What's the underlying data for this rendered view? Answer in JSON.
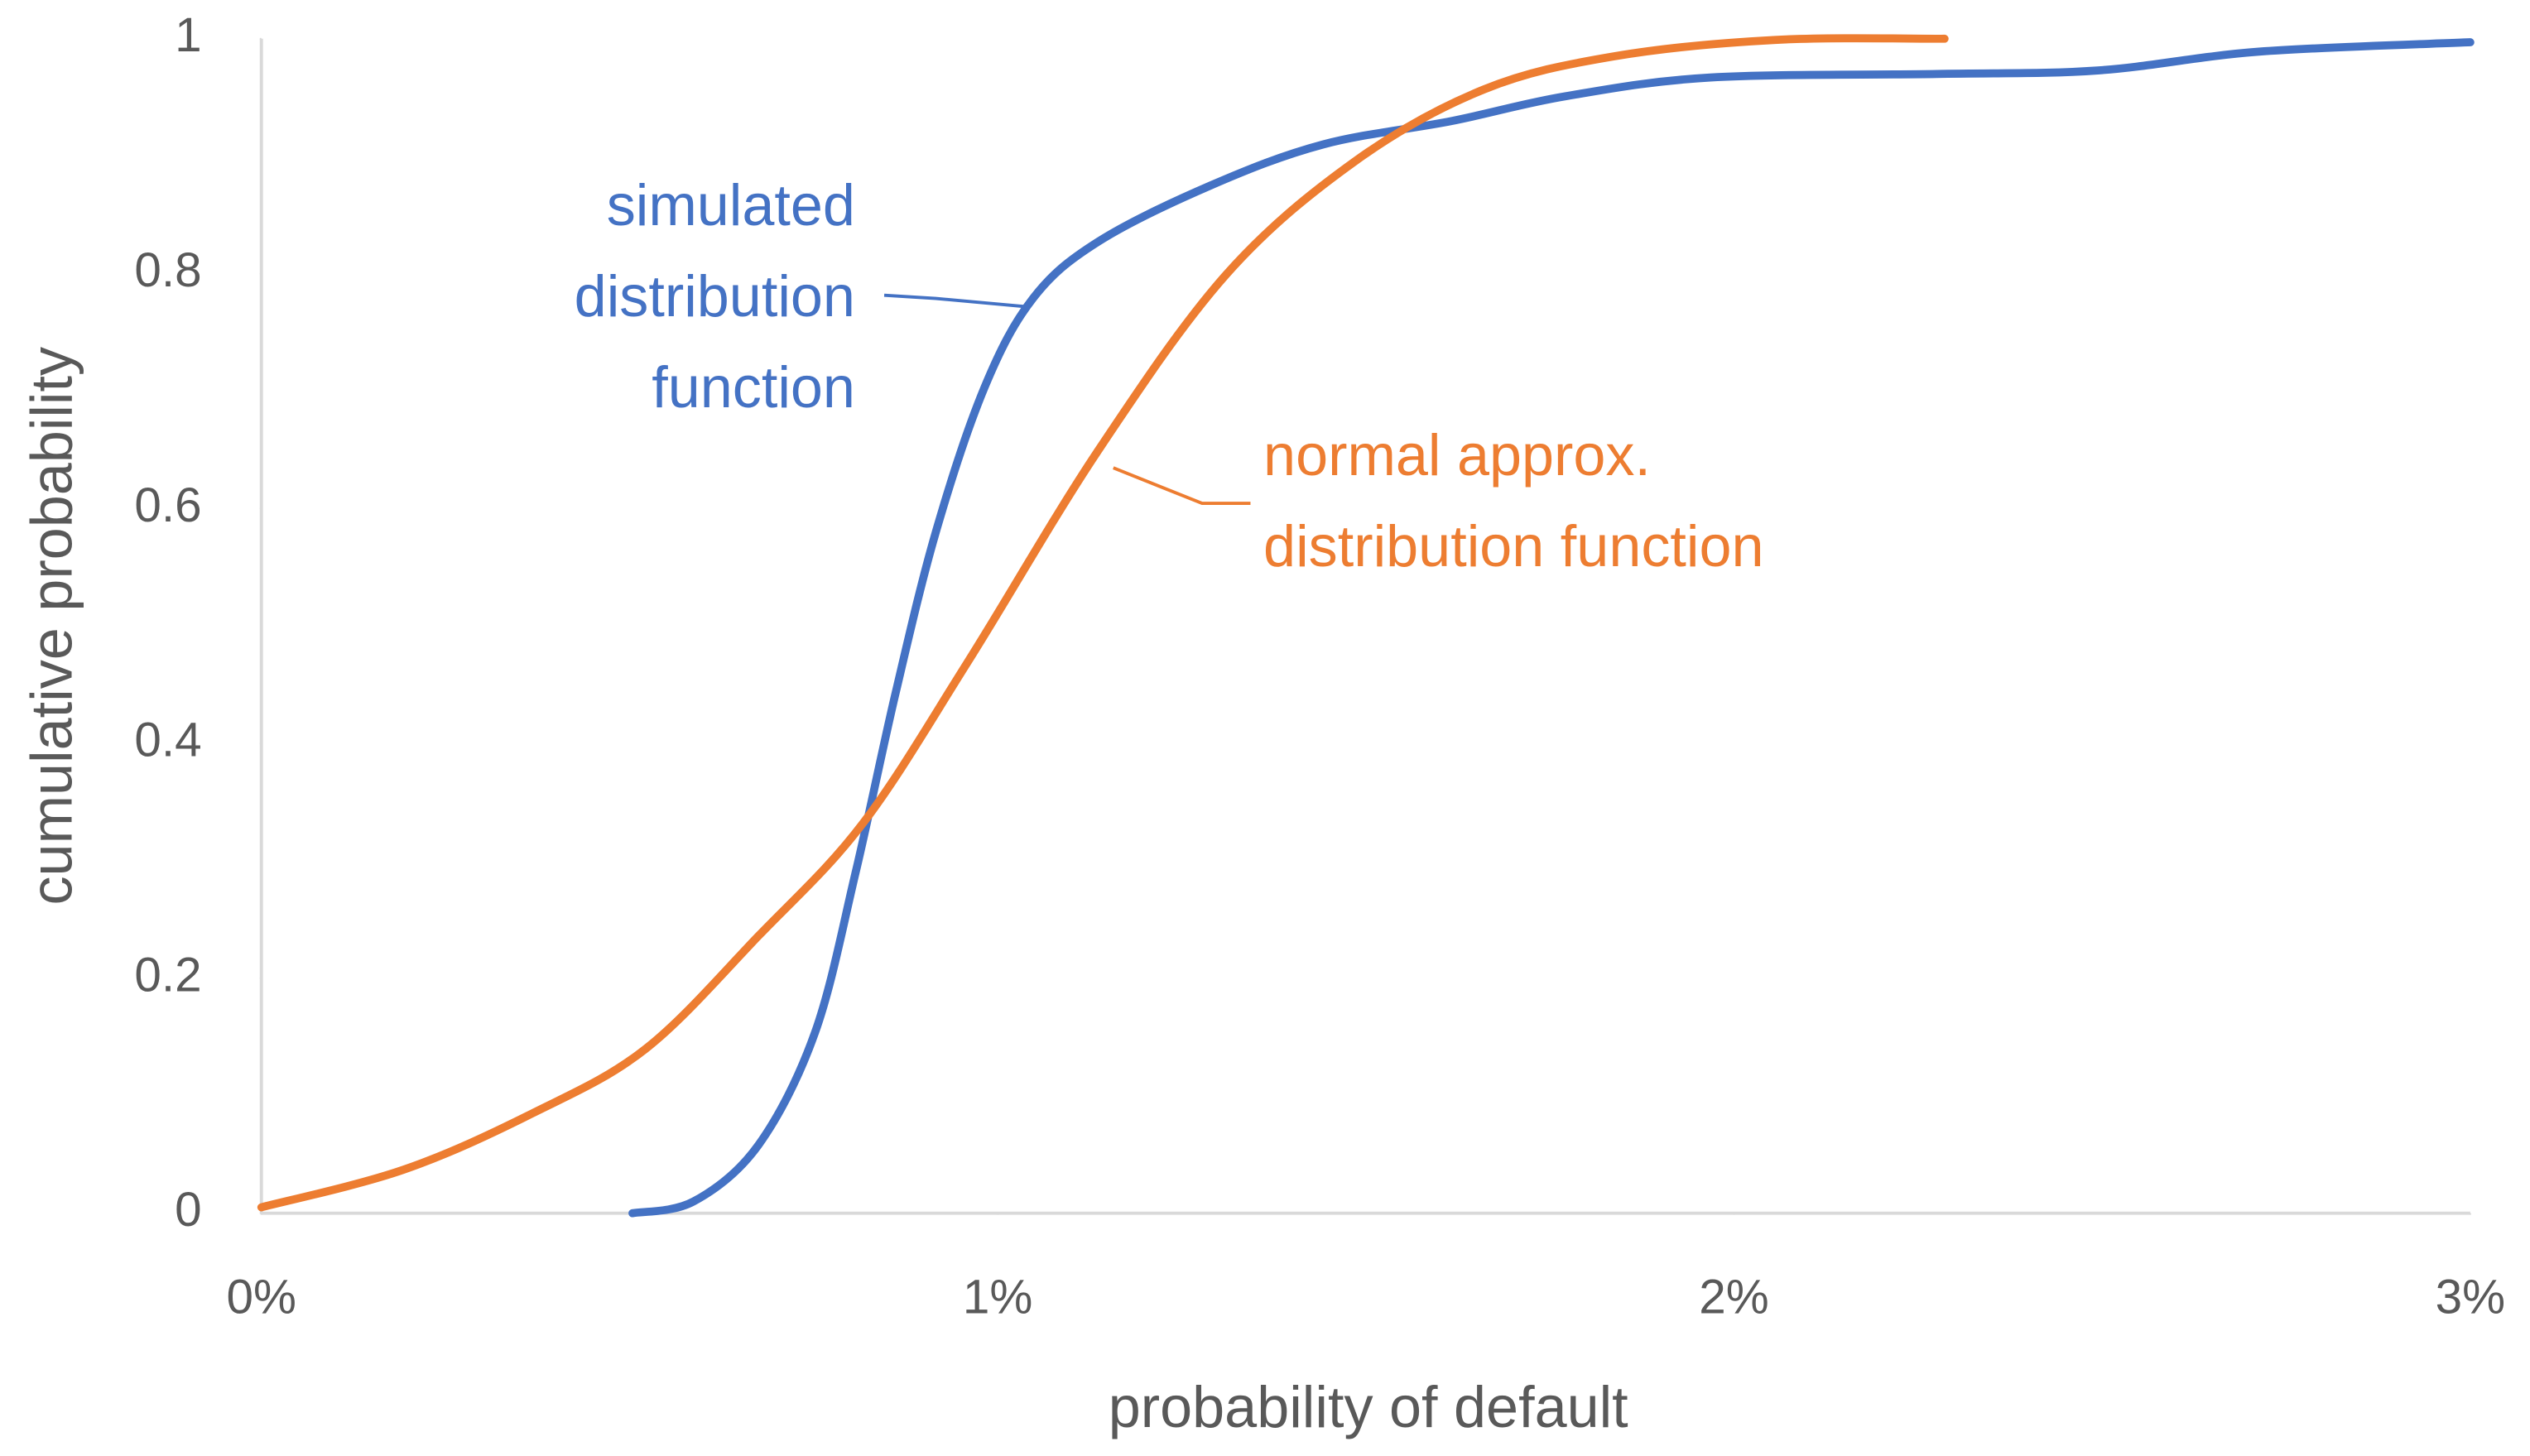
{
  "chart_data": {
    "type": "line",
    "xlabel": "probability of default",
    "ylabel": "cumulative probability",
    "xlim": [
      0,
      3
    ],
    "ylim": [
      0,
      1
    ],
    "xticks": [
      {
        "value": 0,
        "label": "0%"
      },
      {
        "value": 1,
        "label": "1%"
      },
      {
        "value": 2,
        "label": "2%"
      },
      {
        "value": 3,
        "label": "3%"
      }
    ],
    "yticks": [
      0,
      0.2,
      0.4,
      0.6,
      0.8,
      1
    ],
    "grid": false,
    "series": [
      {
        "name": "simulated distribution function",
        "color": "#4472c4",
        "x": [
          0.504,
          0.587,
          0.675,
          0.752,
          0.807,
          0.861,
          0.916,
          0.982,
          1.048,
          1.136,
          1.289,
          1.442,
          1.617,
          1.771,
          1.968,
          2.275,
          2.494,
          2.713,
          3.0
        ],
        "values": [
          0,
          0.01,
          0.058,
          0.154,
          0.29,
          0.442,
          0.58,
          0.703,
          0.779,
          0.827,
          0.875,
          0.91,
          0.93,
          0.951,
          0.967,
          0.97,
          0.973,
          0.989,
          0.997
        ]
      },
      {
        "name": "normal approx. distribution function",
        "color": "#ed7d31",
        "x": [
          0,
          0.193,
          0.368,
          0.522,
          0.675,
          0.817,
          0.96,
          1.135,
          1.31,
          1.486,
          1.661,
          1.837,
          2.056,
          2.286
        ],
        "values": [
          0.005,
          0.037,
          0.085,
          0.14,
          0.236,
          0.332,
          0.47,
          0.648,
          0.799,
          0.896,
          0.957,
          0.985,
          0.999,
          1.0
        ]
      }
    ],
    "annotations": [
      {
        "lines": [
          "simulated",
          "distribution",
          "function"
        ]
      },
      {
        "lines": [
          "normal approx.",
          "distribution function"
        ]
      }
    ]
  }
}
